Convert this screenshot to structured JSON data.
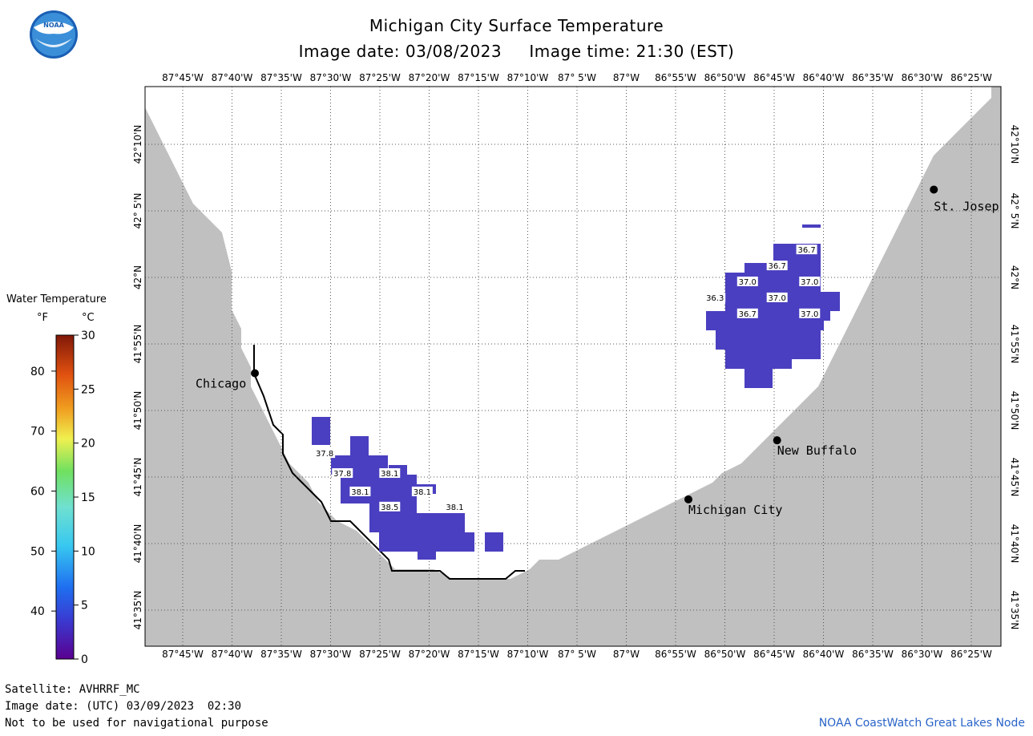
{
  "header": {
    "title": "Michigan City Surface Temperature",
    "subtitle": "Image date: 03/08/2023     Image time: 21:30 (EST)"
  },
  "logo": {
    "icon": "noaa-logo",
    "text": "NOAA"
  },
  "legend": {
    "title": "Water Temperature",
    "unit_f": "°F",
    "unit_c": "°C",
    "f_ticks": [
      "80",
      "70",
      "60",
      "50",
      "40"
    ],
    "c_ticks": [
      "30",
      "25",
      "20",
      "15",
      "10",
      "5",
      "0"
    ]
  },
  "map": {
    "lon_labels": [
      "87°45'W",
      "87°40'W",
      "87°35'W",
      "87°30'W",
      "87°25'W",
      "87°20'W",
      "87°15'W",
      "87°10'W",
      "87° 5'W",
      "87°W",
      "86°55'W",
      "86°50'W",
      "86°45'W",
      "86°40'W",
      "86°35'W",
      "86°30'W",
      "86°25'W"
    ],
    "lat_labels": [
      "42°10'N",
      "42° 5'N",
      "42°N",
      "41°55'N",
      "41°50'N",
      "41°45'N",
      "41°40'N",
      "41°35'N"
    ],
    "cities": [
      {
        "name": "Chicago",
        "lon": -87.628,
        "lat": 41.88
      },
      {
        "name": "St. Josep",
        "lon": -86.48,
        "lat": 42.11
      },
      {
        "name": "New Buffalo",
        "lon": -86.745,
        "lat": 41.796
      },
      {
        "name": "Michigan City",
        "lon": -86.895,
        "lat": 41.722
      }
    ],
    "temperature_labels": [
      {
        "value": "36.7",
        "lon": -86.695,
        "lat": 42.035
      },
      {
        "value": "36.7",
        "lon": -86.745,
        "lat": 42.015
      },
      {
        "value": "37.0",
        "lon": -86.795,
        "lat": 41.995
      },
      {
        "value": "37.0",
        "lon": -86.69,
        "lat": 41.995
      },
      {
        "value": "36.3",
        "lon": -86.85,
        "lat": 41.975
      },
      {
        "value": "37.0",
        "lon": -86.745,
        "lat": 41.975
      },
      {
        "value": "36.7",
        "lon": -86.795,
        "lat": 41.955
      },
      {
        "value": "37.0",
        "lon": -86.69,
        "lat": 41.955
      },
      {
        "value": "37.8",
        "lon": -87.51,
        "lat": 41.78
      },
      {
        "value": "37.8",
        "lon": -87.48,
        "lat": 41.755
      },
      {
        "value": "38.1",
        "lon": -87.4,
        "lat": 41.755
      },
      {
        "value": "38.1",
        "lon": -87.45,
        "lat": 41.732
      },
      {
        "value": "38.1",
        "lon": -87.345,
        "lat": 41.732
      },
      {
        "value": "38.5",
        "lon": -87.4,
        "lat": 41.713
      },
      {
        "value": "38.1",
        "lon": -87.29,
        "lat": 41.713
      }
    ]
  },
  "footer": {
    "satellite": "Satellite: AVHRRF_MC",
    "utc_date": "Image date: (UTC) 03/09/2023  02:30",
    "disclaimer": "Not to be used for navigational purpose",
    "credit": "NOAA CoastWatch Great Lakes Node"
  },
  "colors": {
    "land": "#c0c0c0",
    "water": "#ffffff",
    "sst_cell": "#4a3fc0",
    "sst_cell_warm": "#3d3ccf",
    "title": "#000000",
    "credit": "#2a64c8"
  }
}
